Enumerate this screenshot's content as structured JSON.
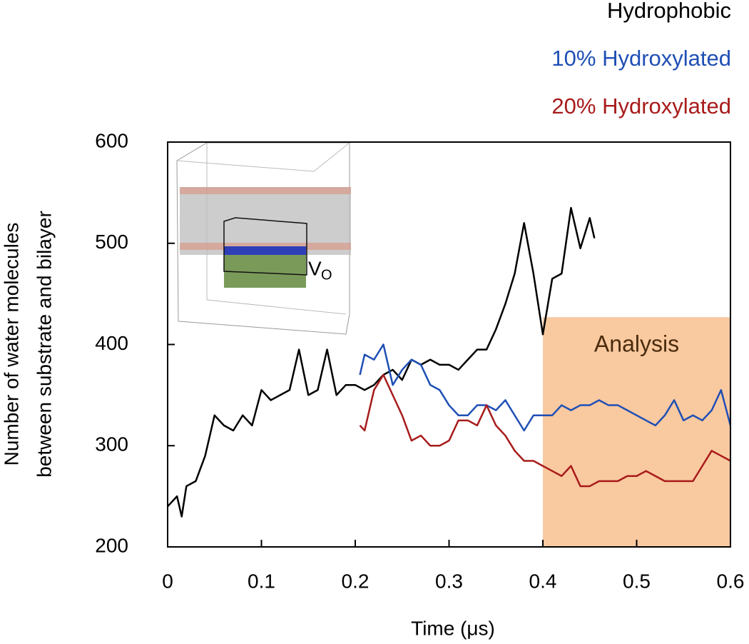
{
  "chart_data": {
    "type": "line",
    "xlabel": "Time (μs)",
    "ylabel": [
      "Number of water molecules",
      "between substrate and bilayer"
    ],
    "xlim": [
      0,
      0.6
    ],
    "xticks": [
      0,
      0.1,
      0.2,
      0.3,
      0.4,
      0.5,
      0.6
    ],
    "ylim": [
      200,
      600
    ],
    "yticks": [
      200,
      300,
      400,
      500,
      600
    ],
    "inset_label": {
      "main": "V",
      "sub": "O"
    },
    "shaded_region": {
      "label": "Analysis",
      "xlim": [
        0.4,
        0.6
      ],
      "ylim": [
        200,
        427
      ],
      "color": "#f9c9a0"
    },
    "series": [
      {
        "name": "Hydrophobic",
        "color": "#000000",
        "x": [
          0,
          0.01,
          0.015,
          0.02,
          0.03,
          0.04,
          0.05,
          0.06,
          0.07,
          0.08,
          0.09,
          0.1,
          0.11,
          0.12,
          0.13,
          0.14,
          0.15,
          0.16,
          0.17,
          0.18,
          0.19,
          0.2,
          0.21,
          0.22,
          0.23,
          0.24,
          0.25,
          0.26,
          0.27,
          0.28,
          0.29,
          0.3,
          0.31,
          0.32,
          0.33,
          0.34,
          0.35,
          0.36,
          0.37,
          0.38,
          0.39,
          0.4,
          0.41,
          0.42,
          0.43,
          0.44,
          0.45,
          0.455
        ],
        "values": [
          240,
          250,
          230,
          260,
          265,
          290,
          330,
          320,
          315,
          330,
          320,
          355,
          345,
          350,
          355,
          395,
          350,
          355,
          395,
          350,
          360,
          360,
          355,
          360,
          370,
          375,
          365,
          385,
          380,
          385,
          380,
          380,
          375,
          385,
          395,
          395,
          415,
          440,
          470,
          520,
          470,
          410,
          465,
          470,
          535,
          495,
          525,
          505
        ]
      },
      {
        "name": "10% Hydroxylated",
        "color": "#1f4fb5",
        "x": [
          0.205,
          0.21,
          0.22,
          0.23,
          0.24,
          0.25,
          0.26,
          0.27,
          0.28,
          0.29,
          0.3,
          0.31,
          0.32,
          0.33,
          0.34,
          0.35,
          0.36,
          0.37,
          0.38,
          0.39,
          0.4,
          0.41,
          0.42,
          0.43,
          0.44,
          0.45,
          0.46,
          0.47,
          0.48,
          0.49,
          0.5,
          0.51,
          0.52,
          0.53,
          0.54,
          0.55,
          0.56,
          0.57,
          0.58,
          0.59,
          0.6
        ],
        "values": [
          370,
          390,
          385,
          400,
          360,
          375,
          385,
          380,
          360,
          355,
          340,
          330,
          330,
          340,
          340,
          335,
          345,
          330,
          315,
          330,
          330,
          330,
          340,
          335,
          340,
          340,
          345,
          340,
          340,
          335,
          330,
          325,
          320,
          330,
          345,
          325,
          330,
          325,
          335,
          355,
          320
        ]
      },
      {
        "name": "20% Hydroxylated",
        "color": "#a81b1b",
        "x": [
          0.205,
          0.21,
          0.22,
          0.23,
          0.24,
          0.25,
          0.26,
          0.27,
          0.28,
          0.29,
          0.3,
          0.31,
          0.32,
          0.33,
          0.34,
          0.35,
          0.36,
          0.37,
          0.38,
          0.39,
          0.4,
          0.41,
          0.42,
          0.43,
          0.44,
          0.45,
          0.46,
          0.47,
          0.48,
          0.49,
          0.5,
          0.51,
          0.52,
          0.53,
          0.54,
          0.55,
          0.56,
          0.57,
          0.58,
          0.59,
          0.6
        ],
        "values": [
          320,
          315,
          355,
          370,
          350,
          330,
          305,
          310,
          300,
          300,
          305,
          325,
          325,
          320,
          340,
          320,
          310,
          295,
          285,
          285,
          280,
          275,
          270,
          280,
          260,
          260,
          265,
          265,
          265,
          270,
          270,
          275,
          270,
          265,
          265,
          265,
          265,
          280,
          295,
          290,
          285
        ]
      }
    ]
  }
}
